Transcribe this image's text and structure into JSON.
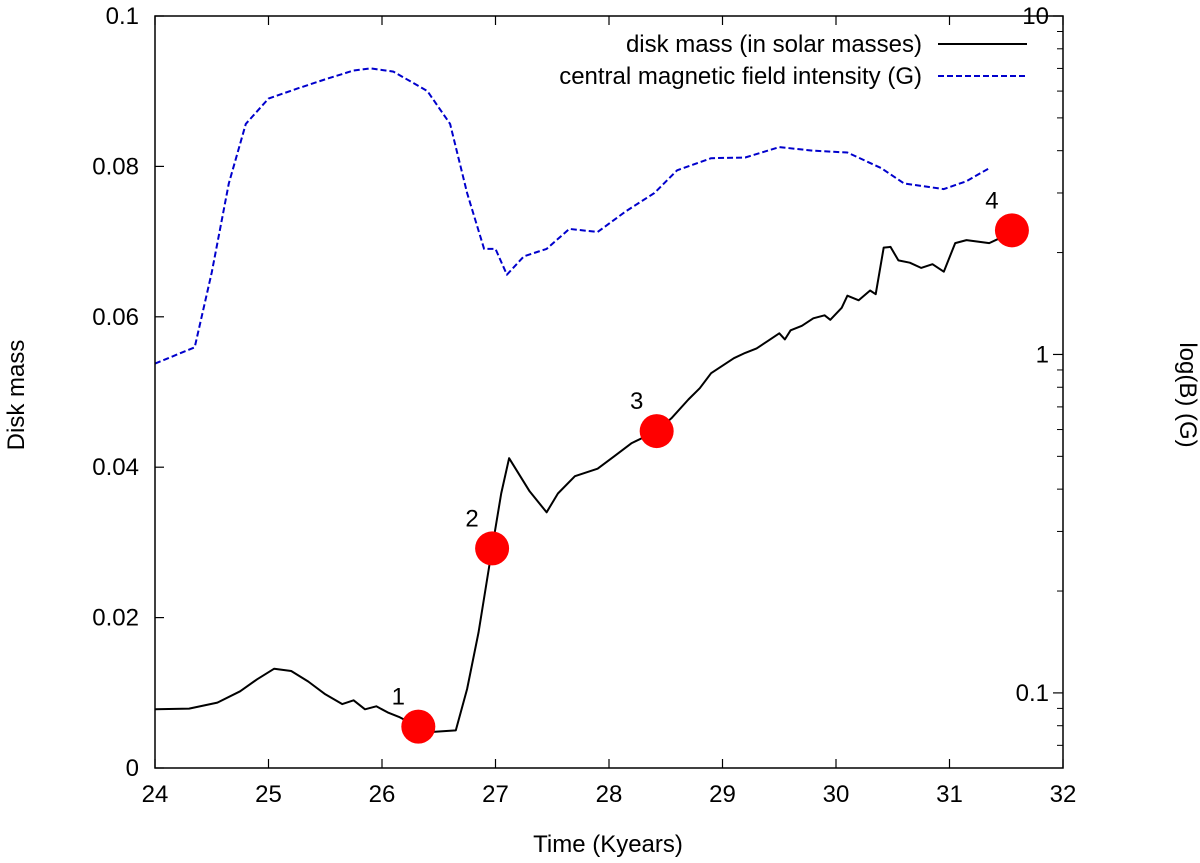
{
  "chart_data": {
    "type": "line",
    "xlabel": "Time (Kyears)",
    "ylabel": "Disk mass",
    "y2label": "log(B) (G)",
    "xlim": [
      24,
      32
    ],
    "ylim": [
      0,
      0.1
    ],
    "y2lim": [
      0.06,
      10
    ],
    "y2scale": "log",
    "grid": false,
    "legend_position": "top-right",
    "x_ticks": [
      "24",
      "25",
      "26",
      "27",
      "28",
      "29",
      "30",
      "31",
      "32"
    ],
    "y_ticks": [
      "0",
      "0.02",
      "0.04",
      "0.06",
      "0.08",
      "0.1"
    ],
    "y2_ticks": [
      "0.1",
      "1",
      "10"
    ],
    "series": [
      {
        "name": "disk mass (in solar masses)",
        "axis": "left",
        "color": "#000000",
        "dash": "solid",
        "points": [
          [
            24.0,
            0.0078
          ],
          [
            24.3,
            0.0079
          ],
          [
            24.55,
            0.0087
          ],
          [
            24.75,
            0.0102
          ],
          [
            24.9,
            0.0118
          ],
          [
            25.05,
            0.0132
          ],
          [
            25.2,
            0.0129
          ],
          [
            25.35,
            0.0115
          ],
          [
            25.5,
            0.0098
          ],
          [
            25.65,
            0.0085
          ],
          [
            25.75,
            0.009
          ],
          [
            25.85,
            0.0078
          ],
          [
            25.95,
            0.0082
          ],
          [
            26.05,
            0.0074
          ],
          [
            26.15,
            0.0068
          ],
          [
            26.3,
            0.0056
          ],
          [
            26.45,
            0.0048
          ],
          [
            26.65,
            0.005
          ],
          [
            26.75,
            0.0105
          ],
          [
            26.85,
            0.018
          ],
          [
            26.97,
            0.0292
          ],
          [
            27.05,
            0.0365
          ],
          [
            27.12,
            0.0412
          ],
          [
            27.3,
            0.0368
          ],
          [
            27.45,
            0.034
          ],
          [
            27.55,
            0.0365
          ],
          [
            27.7,
            0.0388
          ],
          [
            27.9,
            0.0398
          ],
          [
            28.05,
            0.0415
          ],
          [
            28.2,
            0.0432
          ],
          [
            28.42,
            0.0448
          ],
          [
            28.55,
            0.0465
          ],
          [
            28.7,
            0.049
          ],
          [
            28.8,
            0.0505
          ],
          [
            28.9,
            0.0525
          ],
          [
            29.0,
            0.0535
          ],
          [
            29.1,
            0.0545
          ],
          [
            29.2,
            0.0552
          ],
          [
            29.3,
            0.0558
          ],
          [
            29.4,
            0.0568
          ],
          [
            29.5,
            0.0578
          ],
          [
            29.55,
            0.057
          ],
          [
            29.6,
            0.0582
          ],
          [
            29.7,
            0.0588
          ],
          [
            29.8,
            0.0598
          ],
          [
            29.9,
            0.0602
          ],
          [
            29.95,
            0.0596
          ],
          [
            30.05,
            0.0612
          ],
          [
            30.1,
            0.0628
          ],
          [
            30.2,
            0.0622
          ],
          [
            30.3,
            0.0635
          ],
          [
            30.35,
            0.063
          ],
          [
            30.42,
            0.0692
          ],
          [
            30.48,
            0.0693
          ],
          [
            30.55,
            0.0675
          ],
          [
            30.65,
            0.0672
          ],
          [
            30.75,
            0.0665
          ],
          [
            30.85,
            0.067
          ],
          [
            30.95,
            0.066
          ],
          [
            31.05,
            0.0698
          ],
          [
            31.15,
            0.0702
          ],
          [
            31.25,
            0.07
          ],
          [
            31.35,
            0.0698
          ],
          [
            31.45,
            0.0705
          ],
          [
            31.55,
            0.0715
          ]
        ]
      },
      {
        "name": "central magnetic field intensity (G)",
        "axis": "right",
        "color": "#0000cc",
        "dash": "dashed",
        "points": [
          [
            24.0,
            0.94
          ],
          [
            24.35,
            1.05
          ],
          [
            24.5,
            1.75
          ],
          [
            24.65,
            3.2
          ],
          [
            24.8,
            4.8
          ],
          [
            25.0,
            5.7
          ],
          [
            25.25,
            6.1
          ],
          [
            25.5,
            6.5
          ],
          [
            25.75,
            6.9
          ],
          [
            25.9,
            7.0
          ],
          [
            26.1,
            6.85
          ],
          [
            26.4,
            6.0
          ],
          [
            26.6,
            4.8
          ],
          [
            26.75,
            3.0
          ],
          [
            26.9,
            2.05
          ],
          [
            27.0,
            2.05
          ],
          [
            27.1,
            1.72
          ],
          [
            27.25,
            1.95
          ],
          [
            27.45,
            2.05
          ],
          [
            27.65,
            2.35
          ],
          [
            27.9,
            2.3
          ],
          [
            28.15,
            2.65
          ],
          [
            28.4,
            3.0
          ],
          [
            28.6,
            3.5
          ],
          [
            28.9,
            3.8
          ],
          [
            29.2,
            3.82
          ],
          [
            29.5,
            4.1
          ],
          [
            29.8,
            4.0
          ],
          [
            30.1,
            3.95
          ],
          [
            30.4,
            3.55
          ],
          [
            30.6,
            3.2
          ],
          [
            30.95,
            3.08
          ],
          [
            31.15,
            3.25
          ],
          [
            31.35,
            3.55
          ]
        ]
      }
    ],
    "markers": [
      {
        "label": "1",
        "x": 26.32,
        "y": 0.0055,
        "color": "#ff0000"
      },
      {
        "label": "2",
        "x": 26.97,
        "y": 0.0292,
        "color": "#ff0000"
      },
      {
        "label": "3",
        "x": 28.42,
        "y": 0.0448,
        "color": "#ff0000"
      },
      {
        "label": "4",
        "x": 31.55,
        "y": 0.0715,
        "color": "#ff0000"
      }
    ]
  }
}
